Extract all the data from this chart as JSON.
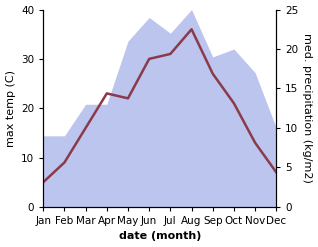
{
  "months": [
    "Jan",
    "Feb",
    "Mar",
    "Apr",
    "May",
    "Jun",
    "Jul",
    "Aug",
    "Sep",
    "Oct",
    "Nov",
    "Dec"
  ],
  "month_positions": [
    0,
    1,
    2,
    3,
    4,
    5,
    6,
    7,
    8,
    9,
    10,
    11
  ],
  "temp": [
    5,
    9,
    16,
    23,
    22,
    30,
    31,
    36,
    27,
    21,
    13,
    7
  ],
  "precip": [
    9,
    9,
    13,
    13,
    21,
    24,
    22,
    25,
    19,
    20,
    17,
    10
  ],
  "temp_color": "#8b3a4a",
  "precip_color_fill": "#bcc5ee",
  "ylabel_left": "max temp (C)",
  "ylabel_right": "med. precipitation (kg/m2)",
  "xlabel": "date (month)",
  "ylim_left": [
    0,
    40
  ],
  "ylim_right": [
    0,
    25
  ],
  "yticks_left": [
    0,
    10,
    20,
    30,
    40
  ],
  "yticks_right": [
    0,
    5,
    10,
    15,
    20,
    25
  ],
  "bg_color": "#ffffff",
  "label_fontsize": 8,
  "tick_fontsize": 7.5,
  "linewidth": 1.8
}
